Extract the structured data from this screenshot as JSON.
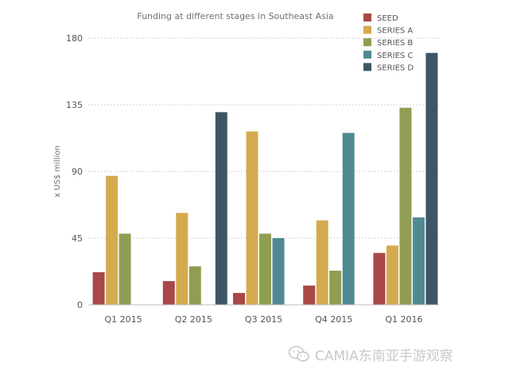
{
  "chart_data": {
    "type": "bar",
    "title": "Funding at different stages in Southeast Asia",
    "xlabel": "",
    "ylabel": "x US$ million",
    "categories": [
      "Q1 2015",
      "Q2 2015",
      "Q3 2015",
      "Q4 2015",
      "Q1 2016"
    ],
    "ylim": [
      0,
      180
    ],
    "yticks": [
      0,
      45,
      90,
      135,
      180
    ],
    "grid": true,
    "legend_position": "top-right",
    "series": [
      {
        "name": "SEED",
        "color": "#a84848",
        "values": [
          22,
          16,
          8,
          13,
          35
        ]
      },
      {
        "name": "SERIES A",
        "color": "#d4aa4f",
        "values": [
          87,
          62,
          117,
          57,
          40
        ]
      },
      {
        "name": "SERIES B",
        "color": "#8f9e52",
        "values": [
          48,
          26,
          48,
          23,
          133
        ]
      },
      {
        "name": "SERIES C",
        "color": "#4f8a93",
        "values": [
          0,
          0,
          45,
          116,
          59
        ]
      },
      {
        "name": "SERIES D",
        "color": "#3e5565",
        "values": [
          0,
          130,
          0,
          0,
          170
        ]
      }
    ]
  },
  "watermark": {
    "text": "CAMIA东南亚手游观察",
    "icon": "wechat-icon"
  }
}
